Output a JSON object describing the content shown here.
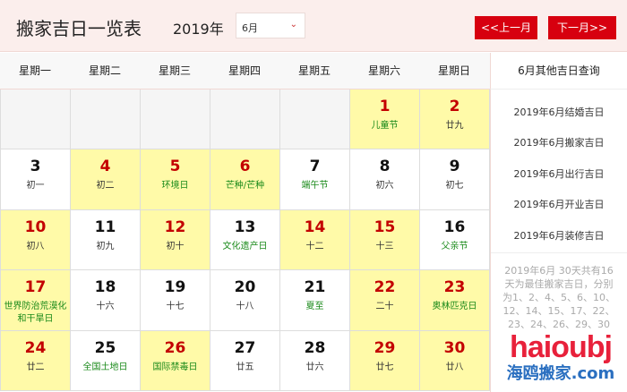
{
  "header": {
    "title": "搬家吉日一览表",
    "year": "2019年",
    "month_select": "6月",
    "prev_label": "<<上一月",
    "next_label": "下一月>>"
  },
  "weekdays": [
    "星期一",
    "星期二",
    "星期三",
    "星期四",
    "星期五",
    "星期六",
    "星期日"
  ],
  "sidebar": {
    "title": "6月其他吉日查询",
    "links": [
      "2019年6月结婚吉日",
      "2019年6月搬家吉日",
      "2019年6月出行吉日",
      "2019年6月开业吉日",
      "2019年6月装修吉日"
    ],
    "description": "2019年6月 30天共有16天为最佳搬家吉日，分别为1、2、4、5、6、10、12、14、15、17、22、23、24、26、29、30"
  },
  "calendar": {
    "leading_empty": 5,
    "days": [
      {
        "day": "1",
        "label": "儿童节",
        "good": true,
        "festival": true
      },
      {
        "day": "2",
        "label": "廿九",
        "good": true
      },
      {
        "day": "3",
        "label": "初一"
      },
      {
        "day": "4",
        "label": "初二",
        "good": true
      },
      {
        "day": "5",
        "label": "环境日",
        "good": true,
        "festival": true
      },
      {
        "day": "6",
        "label": "芒种/芒种",
        "good": true,
        "festival": true
      },
      {
        "day": "7",
        "label": "端午节",
        "festival": true
      },
      {
        "day": "8",
        "label": "初六"
      },
      {
        "day": "9",
        "label": "初七"
      },
      {
        "day": "10",
        "label": "初八",
        "good": true
      },
      {
        "day": "11",
        "label": "初九"
      },
      {
        "day": "12",
        "label": "初十",
        "good": true
      },
      {
        "day": "13",
        "label": "文化遗产日",
        "festival": true
      },
      {
        "day": "14",
        "label": "十二",
        "good": true
      },
      {
        "day": "15",
        "label": "十三",
        "good": true
      },
      {
        "day": "16",
        "label": "父亲节",
        "festival": true
      },
      {
        "day": "17",
        "label": "世界防治荒漠化和干旱日",
        "good": true,
        "festival": true
      },
      {
        "day": "18",
        "label": "十六"
      },
      {
        "day": "19",
        "label": "十七"
      },
      {
        "day": "20",
        "label": "十八"
      },
      {
        "day": "21",
        "label": "夏至",
        "festival": true
      },
      {
        "day": "22",
        "label": "二十",
        "good": true
      },
      {
        "day": "23",
        "label": "奥林匹克日",
        "good": true,
        "festival": true
      },
      {
        "day": "24",
        "label": "廿二",
        "good": true
      },
      {
        "day": "25",
        "label": "全国土地日",
        "festival": true
      },
      {
        "day": "26",
        "label": "国际禁毒日",
        "good": true,
        "festival": true
      },
      {
        "day": "27",
        "label": "廿五"
      },
      {
        "day": "28",
        "label": "廿六"
      },
      {
        "day": "29",
        "label": "廿七",
        "good": true
      },
      {
        "day": "30",
        "label": "廿八",
        "good": true
      }
    ]
  },
  "watermark": {
    "en": "haioubj",
    "cn": "海鸥搬家.com"
  },
  "colors": {
    "accent": "#d7000f",
    "good_day_bg": "#fffaa8",
    "good_day_number": "#c30000",
    "festival": "#1a8a1a",
    "header_bg": "#fbeeec"
  }
}
